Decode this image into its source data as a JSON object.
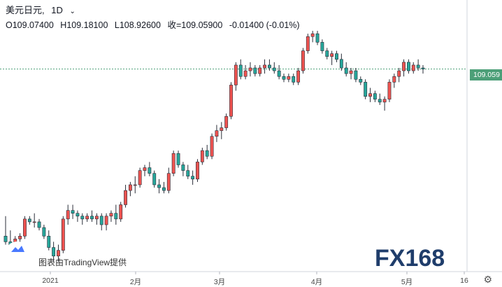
{
  "header": {
    "symbol": "美元日元,",
    "interval": "1D",
    "open": "O109.07400",
    "high": "H109.18100",
    "low": "L108.92600",
    "close": "收=109.05900",
    "change": "-0.01400 (-0.01%)"
  },
  "price_tag": "109.059",
  "x_axis_labels": [
    "2021",
    "2月",
    "3月",
    "4月",
    "5月",
    "16"
  ],
  "attribution": "图表由TradingView提供",
  "watermark": "FX168",
  "colors": {
    "up": "#ef5350",
    "down": "#26a69a",
    "tag": "#4c9f78"
  },
  "chart_data": {
    "type": "candlestick",
    "y_range": [
      102.2,
      110.5
    ],
    "candles": [
      [
        103.2,
        103.9,
        102.9,
        103.0
      ],
      [
        103.0,
        103.4,
        102.6,
        102.7
      ],
      [
        102.7,
        103.2,
        102.6,
        103.1
      ],
      [
        103.1,
        103.3,
        102.9,
        103.2
      ],
      [
        103.2,
        103.9,
        103.1,
        103.8
      ],
      [
        103.8,
        103.9,
        103.6,
        103.7
      ],
      [
        103.7,
        104.0,
        103.5,
        103.7
      ],
      [
        103.7,
        103.8,
        103.4,
        103.5
      ],
      [
        103.5,
        103.6,
        103.1,
        103.2
      ],
      [
        103.2,
        103.4,
        102.7,
        102.8
      ],
      [
        102.8,
        103.0,
        102.3,
        102.5
      ],
      [
        102.5,
        102.9,
        102.3,
        102.7
      ],
      [
        102.7,
        103.9,
        102.6,
        103.8
      ],
      [
        103.8,
        104.3,
        103.6,
        104.1
      ],
      [
        104.1,
        104.3,
        103.8,
        104.0
      ],
      [
        104.0,
        104.1,
        103.7,
        103.9
      ],
      [
        103.9,
        104.0,
        103.6,
        103.8
      ],
      [
        103.8,
        104.0,
        103.7,
        103.9
      ],
      [
        103.9,
        104.1,
        103.7,
        103.8
      ],
      [
        103.8,
        104.0,
        103.6,
        103.9
      ],
      [
        103.9,
        104.0,
        103.4,
        103.6
      ],
      [
        103.6,
        104.0,
        103.4,
        103.9
      ],
      [
        103.9,
        104.1,
        103.7,
        104.0
      ],
      [
        104.0,
        104.3,
        103.6,
        103.8
      ],
      [
        103.8,
        104.4,
        103.7,
        104.3
      ],
      [
        104.3,
        105.0,
        104.2,
        104.8
      ],
      [
        104.8,
        105.1,
        104.6,
        105.0
      ],
      [
        105.0,
        105.3,
        104.7,
        105.0
      ],
      [
        105.0,
        105.6,
        104.9,
        105.5
      ],
      [
        105.5,
        105.7,
        105.3,
        105.6
      ],
      [
        105.6,
        105.8,
        105.3,
        105.4
      ],
      [
        105.4,
        105.5,
        104.9,
        105.0
      ],
      [
        105.0,
        105.2,
        104.7,
        104.9
      ],
      [
        104.9,
        105.1,
        104.7,
        104.8
      ],
      [
        104.8,
        105.6,
        104.7,
        105.4
      ],
      [
        105.4,
        106.2,
        105.3,
        106.1
      ],
      [
        106.1,
        106.2,
        105.6,
        105.7
      ],
      [
        105.7,
        105.8,
        105.3,
        105.5
      ],
      [
        105.5,
        105.7,
        105.2,
        105.3
      ],
      [
        105.3,
        105.5,
        105.0,
        105.2
      ],
      [
        105.2,
        105.9,
        105.1,
        105.8
      ],
      [
        105.8,
        106.3,
        105.7,
        106.2
      ],
      [
        106.2,
        106.4,
        105.9,
        106.0
      ],
      [
        106.0,
        106.8,
        105.9,
        106.7
      ],
      [
        106.7,
        107.1,
        106.5,
        106.9
      ],
      [
        106.9,
        107.2,
        106.6,
        107.0
      ],
      [
        107.0,
        107.5,
        106.9,
        107.4
      ],
      [
        107.4,
        108.6,
        107.3,
        108.5
      ],
      [
        108.5,
        109.3,
        108.3,
        109.2
      ],
      [
        109.2,
        109.4,
        108.7,
        108.8
      ],
      [
        108.8,
        109.2,
        108.7,
        109.0
      ],
      [
        109.0,
        109.3,
        108.8,
        109.1
      ],
      [
        109.1,
        109.2,
        108.8,
        108.9
      ],
      [
        108.9,
        109.2,
        108.8,
        109.1
      ],
      [
        109.1,
        109.4,
        108.9,
        109.2
      ],
      [
        109.2,
        109.4,
        109.0,
        109.1
      ],
      [
        109.1,
        109.3,
        108.9,
        109.0
      ],
      [
        109.0,
        109.2,
        108.7,
        108.8
      ],
      [
        108.8,
        108.9,
        108.6,
        108.7
      ],
      [
        108.7,
        108.9,
        108.6,
        108.8
      ],
      [
        108.8,
        108.9,
        108.5,
        108.6
      ],
      [
        108.6,
        109.1,
        108.5,
        109.0
      ],
      [
        109.0,
        109.8,
        108.9,
        109.7
      ],
      [
        109.7,
        110.3,
        109.6,
        110.2
      ],
      [
        110.2,
        110.4,
        110.0,
        110.3
      ],
      [
        110.3,
        110.4,
        109.9,
        110.0
      ],
      [
        110.0,
        110.1,
        109.6,
        109.7
      ],
      [
        109.7,
        109.8,
        109.4,
        109.5
      ],
      [
        109.5,
        109.7,
        109.2,
        109.6
      ],
      [
        109.6,
        109.7,
        109.3,
        109.4
      ],
      [
        109.4,
        109.6,
        109.0,
        109.1
      ],
      [
        109.1,
        109.3,
        108.8,
        108.9
      ],
      [
        108.9,
        109.1,
        108.7,
        109.0
      ],
      [
        109.0,
        109.1,
        108.6,
        108.7
      ],
      [
        108.7,
        108.8,
        108.5,
        108.6
      ],
      [
        108.6,
        108.7,
        108.0,
        108.1
      ],
      [
        108.1,
        108.4,
        107.9,
        108.2
      ],
      [
        108.2,
        108.3,
        107.9,
        108.0
      ],
      [
        108.0,
        108.2,
        107.8,
        107.9
      ],
      [
        107.9,
        108.1,
        107.6,
        108.0
      ],
      [
        108.0,
        108.7,
        107.9,
        108.6
      ],
      [
        108.6,
        108.9,
        108.4,
        108.8
      ],
      [
        108.8,
        109.1,
        108.6,
        109.0
      ],
      [
        109.0,
        109.4,
        108.8,
        109.3
      ],
      [
        109.3,
        109.4,
        108.9,
        109.0
      ],
      [
        109.0,
        109.3,
        108.9,
        109.2
      ],
      [
        109.2,
        109.4,
        109.0,
        109.1
      ],
      [
        109.1,
        109.2,
        108.9,
        109.06
      ]
    ],
    "last_price": 109.059
  }
}
